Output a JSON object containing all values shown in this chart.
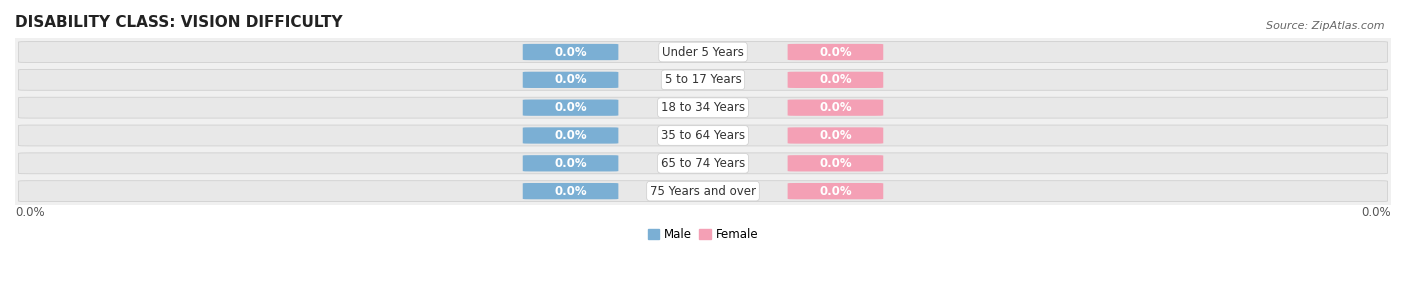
{
  "title": "DISABILITY CLASS: VISION DIFFICULTY",
  "source": "Source: ZipAtlas.com",
  "categories": [
    "Under 5 Years",
    "5 to 17 Years",
    "18 to 34 Years",
    "35 to 64 Years",
    "65 to 74 Years",
    "75 Years and over"
  ],
  "male_values": [
    0.0,
    0.0,
    0.0,
    0.0,
    0.0,
    0.0
  ],
  "female_values": [
    0.0,
    0.0,
    0.0,
    0.0,
    0.0,
    0.0
  ],
  "male_color": "#7bafd4",
  "female_color": "#f4a0b5",
  "male_label": "Male",
  "female_label": "Female",
  "bar_bg_color": "#e8e8e8",
  "bar_bg_edge_color": "#d0d0d0",
  "row_gap_color": "#ffffff",
  "title_fontsize": 11,
  "label_fontsize": 8.5,
  "tick_fontsize": 8.5,
  "source_fontsize": 8,
  "background_color": "#ffffff",
  "axis_bg_color": "#f0f0f0"
}
